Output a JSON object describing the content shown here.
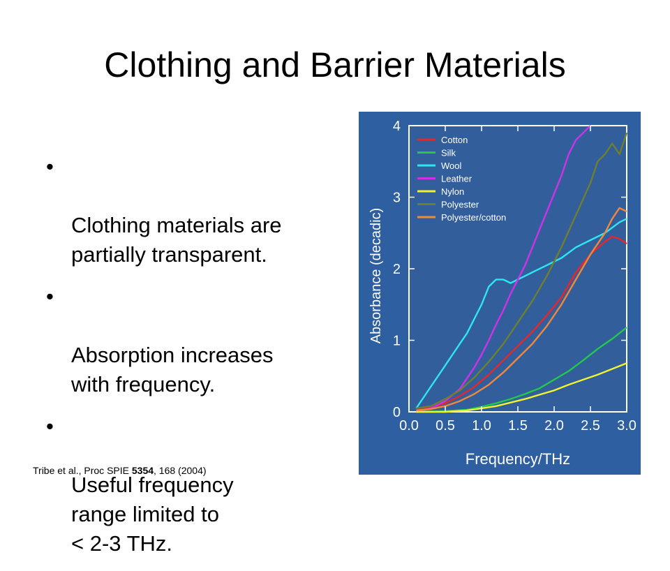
{
  "slide": {
    "title": "Clothing and Barrier Materials",
    "bullets": [
      "Clothing materials are\npartially transparent.",
      "Absorption increases\nwith frequency.",
      "Useful frequency\nrange limited to\n< 2-3 THz."
    ],
    "bullet_glyph": "•",
    "citation": {
      "prefix": "Tribe et al., Proc SPIE ",
      "volume": "5354",
      "suffix": ", 168 (2004)"
    }
  },
  "chart_data": {
    "type": "line",
    "xlabel": "Frequency/THz",
    "ylabel": "Absorbance (decadic)",
    "xlim": [
      0,
      3.0
    ],
    "ylim": [
      0,
      4
    ],
    "xticks": [
      "0.0",
      "0.5",
      "1.0",
      "1.5",
      "2.0",
      "2.5",
      "3.0"
    ],
    "yticks": [
      "0",
      "1",
      "2",
      "3",
      "4"
    ],
    "grid": false,
    "legend_position": "top-left",
    "background_color": "#2e5fa0",
    "plot_color": "#325f9c",
    "series": [
      {
        "name": "Cotton",
        "color": "#e8262a",
        "x": [
          0.1,
          0.3,
          0.5,
          0.7,
          0.9,
          1.1,
          1.3,
          1.5,
          1.7,
          1.9,
          2.1,
          2.3,
          2.5,
          2.7,
          2.8,
          2.9,
          3.0
        ],
        "y": [
          0.02,
          0.06,
          0.12,
          0.22,
          0.35,
          0.52,
          0.72,
          0.92,
          1.12,
          1.35,
          1.6,
          1.95,
          2.2,
          2.38,
          2.45,
          2.42,
          2.35
        ]
      },
      {
        "name": "Silk",
        "color": "#22c94a",
        "x": [
          0.1,
          0.5,
          0.8,
          1.0,
          1.2,
          1.4,
          1.6,
          1.8,
          2.0,
          2.2,
          2.4,
          2.6,
          2.8,
          3.0
        ],
        "y": [
          0.0,
          0.01,
          0.03,
          0.07,
          0.12,
          0.18,
          0.25,
          0.33,
          0.45,
          0.57,
          0.72,
          0.88,
          1.02,
          1.18
        ]
      },
      {
        "name": "Wool",
        "color": "#2ee6f2",
        "x": [
          0.1,
          0.2,
          0.3,
          0.4,
          0.5,
          0.6,
          0.7,
          0.8,
          0.9,
          1.0,
          1.1,
          1.2,
          1.3,
          1.4,
          1.5,
          1.7,
          1.9,
          2.1,
          2.3,
          2.5,
          2.7,
          2.9,
          3.0
        ],
        "y": [
          0.05,
          0.2,
          0.35,
          0.5,
          0.65,
          0.8,
          0.95,
          1.1,
          1.3,
          1.5,
          1.75,
          1.85,
          1.85,
          1.8,
          1.85,
          1.95,
          2.05,
          2.15,
          2.3,
          2.4,
          2.5,
          2.65,
          2.7
        ]
      },
      {
        "name": "Leather",
        "color": "#cc33e6",
        "x": [
          0.1,
          0.3,
          0.5,
          0.7,
          0.9,
          1.0,
          1.1,
          1.2,
          1.3,
          1.4,
          1.5,
          1.6,
          1.7,
          1.8,
          1.9,
          2.0,
          2.1,
          2.2,
          2.3,
          2.4,
          2.5
        ],
        "y": [
          0.0,
          0.05,
          0.15,
          0.32,
          0.62,
          0.8,
          1.0,
          1.22,
          1.42,
          1.65,
          1.85,
          2.05,
          2.3,
          2.55,
          2.8,
          3.05,
          3.3,
          3.6,
          3.8,
          3.9,
          4.0
        ]
      },
      {
        "name": "Nylon",
        "color": "#f2f22e",
        "x": [
          0.1,
          0.5,
          0.8,
          1.0,
          1.2,
          1.4,
          1.6,
          1.8,
          2.0,
          2.2,
          2.4,
          2.6,
          2.8,
          3.0
        ],
        "y": [
          0.0,
          0.0,
          0.02,
          0.05,
          0.08,
          0.13,
          0.18,
          0.24,
          0.3,
          0.38,
          0.45,
          0.52,
          0.6,
          0.68
        ]
      },
      {
        "name": "Polyester",
        "color": "#6e7f2e",
        "x": [
          0.1,
          0.3,
          0.5,
          0.7,
          0.9,
          1.1,
          1.3,
          1.5,
          1.7,
          1.9,
          2.1,
          2.3,
          2.5,
          2.6,
          2.7,
          2.8,
          2.9,
          3.0
        ],
        "y": [
          0.05,
          0.08,
          0.18,
          0.3,
          0.48,
          0.7,
          0.95,
          1.25,
          1.55,
          1.9,
          2.3,
          2.75,
          3.2,
          3.5,
          3.6,
          3.75,
          3.6,
          3.9
        ]
      },
      {
        "name": "Polyester/cotton",
        "color": "#f0883a",
        "x": [
          0.1,
          0.3,
          0.5,
          0.7,
          0.9,
          1.1,
          1.3,
          1.5,
          1.7,
          1.9,
          2.1,
          2.3,
          2.5,
          2.7,
          2.8,
          2.9,
          3.0
        ],
        "y": [
          0.02,
          0.04,
          0.08,
          0.15,
          0.25,
          0.38,
          0.55,
          0.75,
          0.95,
          1.2,
          1.5,
          1.85,
          2.2,
          2.5,
          2.7,
          2.85,
          2.8
        ]
      }
    ]
  }
}
